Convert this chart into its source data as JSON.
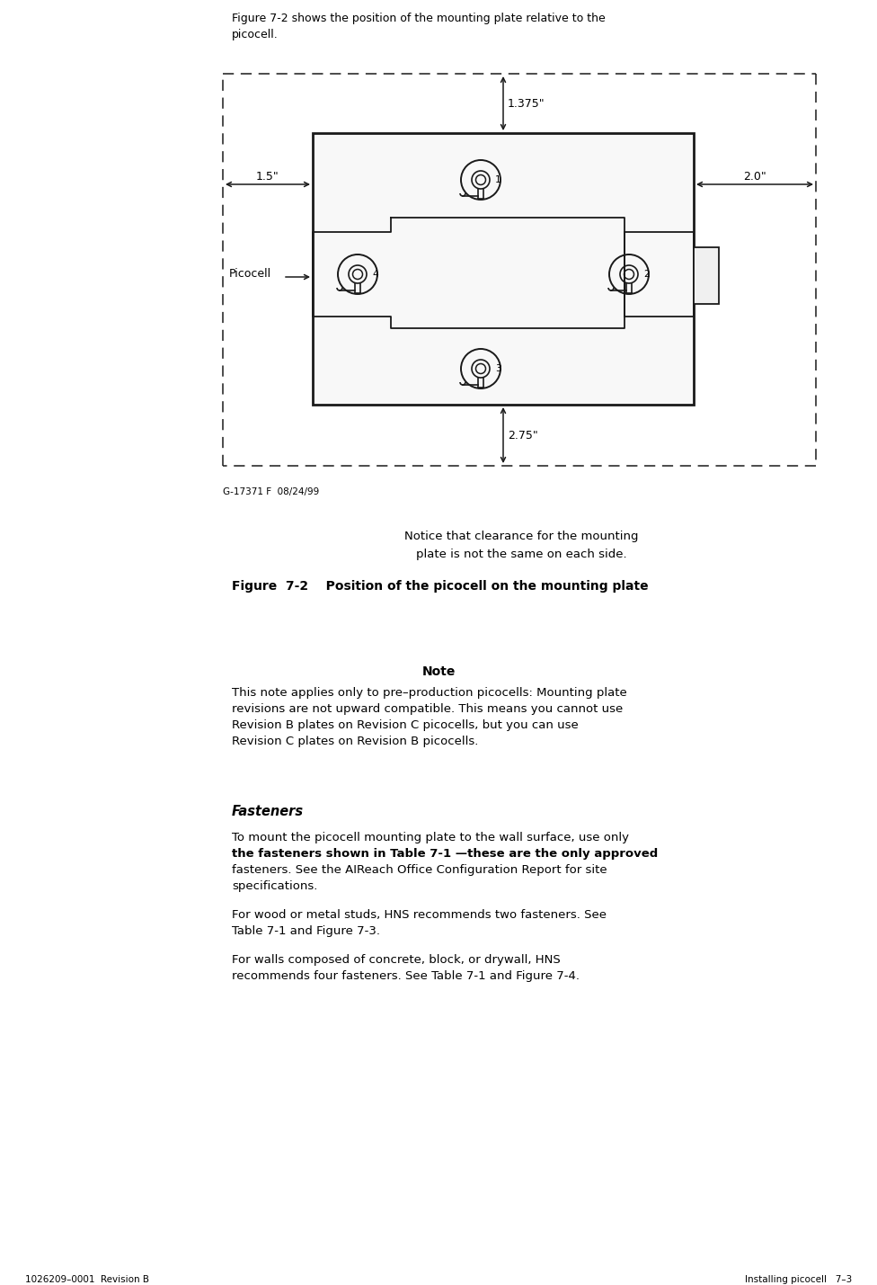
{
  "bg_color": "#ffffff",
  "page_header_left": "1026209–0001  Revision B",
  "page_header_right": "Installing picocell   7–3",
  "intro_line1": "Figure 7-2 shows the position of the mounting plate relative to the",
  "intro_line2": "picocell.",
  "dim_top": "1.375\"",
  "dim_left": "1.5\"",
  "dim_right": "2.0\"",
  "dim_bottom": "2.75\"",
  "figure_id": "G-17371 F  08/24/99",
  "notice_line1": "Notice that clearance for the mounting",
  "notice_line2": "plate is not the same on each side.",
  "figure_caption": "Figure  7-2    Position of the picocell on the mounting plate",
  "picocell_label": "Picocell",
  "note_title": "Note",
  "note_line1": "This note applies only to pre–production picocells: Mounting plate",
  "note_line2": "revisions are not upward compatible. This means you cannot use",
  "note_line3": "Revision B plates on Revision C picocells, but you can use",
  "note_line4": "Revision C plates on Revision B picocells.",
  "fasteners_title": "Fasteners",
  "fast_p1_l1": "To mount the picocell mounting plate to the wall surface, use only",
  "fast_p1_l2_bold": "the fasteners shown in Table 7-1 —these are the only approved",
  "fast_p1_l3_bold": "fasteners.",
  "fast_p1_l3_rest": " See the ",
  "fast_p1_italic": "AIReach Office Configuration Report",
  "fast_p1_end": " for site",
  "fast_p1_l4": "specifications.",
  "fast_p2_l1": "For wood or metal studs, HNS recommends two fasteners. See",
  "fast_p2_l2": "Table 7-1 and Figure 7-3.",
  "fast_p3_l1": "For walls composed of concrete, block, or drywall, HNS",
  "fast_p3_l2": "recommends four fasteners. See Table 7-1 and Figure 7-4."
}
